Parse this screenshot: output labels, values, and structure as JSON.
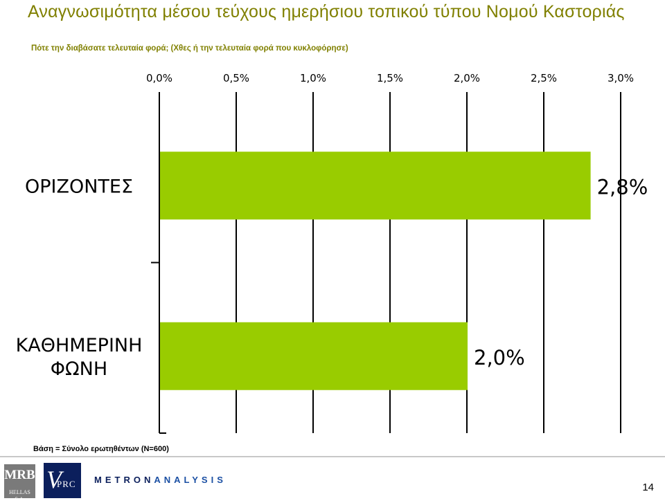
{
  "header": {
    "title": "Αναγνωσιμότητα μέσου τεύχους ημερήσιου τοπικού τύπου Νομού Καστοριάς",
    "subtitle": "Πότε την διαβάσατε τελευταία φορά; (Χθες ή την τελευταία φορά που κυκλοφόρησε)"
  },
  "chart_data": {
    "type": "bar",
    "orientation": "horizontal",
    "categories": [
      "ΟΡΙΖΟΝΤΕΣ",
      "ΚΑΘΗΜΕΡΙΝΗ ΦΩΝΗ"
    ],
    "values": [
      2.8,
      2.0
    ],
    "value_labels": [
      "2,8%",
      "2,0%"
    ],
    "xlim": [
      0,
      3.0
    ],
    "x_ticks": [
      "0,0%",
      "0,5%",
      "1,0%",
      "1,5%",
      "2,0%",
      "2,5%",
      "3,0%"
    ],
    "x_axis_position": "top",
    "grid": true,
    "bar_color": "#99cc00"
  },
  "footer": {
    "base_note": "Βάση = Σύνολο ερωτηθέντων (N=600)",
    "page_number": "14",
    "logos": {
      "mrb_big": "MRB",
      "mrb_small": "HELLAS S.A.",
      "vprc_v": "V",
      "vprc_rest": "PRC",
      "metron": "METRON",
      "analysis": "ANALYSIS"
    }
  }
}
